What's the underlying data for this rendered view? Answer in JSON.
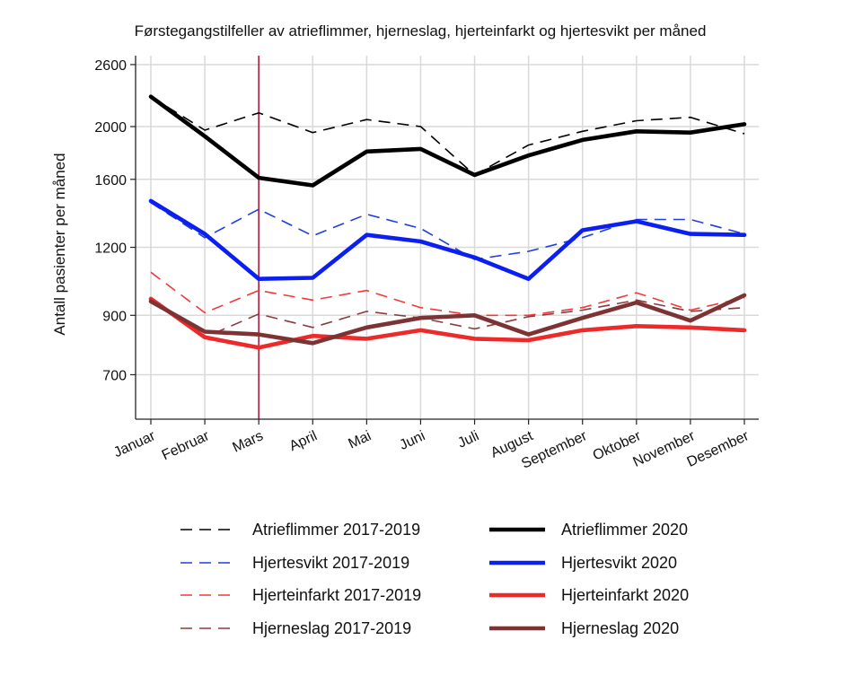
{
  "chart_data": {
    "type": "line",
    "title": "Førstegangstilfeller av atrieflimmer, hjerneslag, hjerteinfarkt og hjertesvikt per måned",
    "xlabel": "",
    "ylabel": "Antall pasienter per måned",
    "categories": [
      "Januar",
      "Februar",
      "Mars",
      "April",
      "Mai",
      "Juni",
      "Juli",
      "August",
      "September",
      "Oktober",
      "November",
      "Desember"
    ],
    "y_scale": "log",
    "ylim": [
      580,
      2700
    ],
    "yticks": [
      700,
      900,
      1200,
      1600,
      2000,
      2600
    ],
    "marker_line": {
      "category": "Mars",
      "color": "#b02040"
    },
    "grid": true,
    "legend_position": "bottom",
    "series": [
      {
        "name": "Atrieflimmer 2017-2019",
        "color": "#000000",
        "style": "dashed",
        "values": [
          2270,
          1970,
          2120,
          1950,
          2060,
          2000,
          1630,
          1850,
          1960,
          2050,
          2080,
          1940
        ]
      },
      {
        "name": "Atrieflimmer 2020",
        "color": "#000000",
        "style": "solid",
        "values": [
          2270,
          1920,
          1610,
          1560,
          1800,
          1820,
          1630,
          1770,
          1890,
          1960,
          1950,
          2020
        ]
      },
      {
        "name": "Hjertesvikt 2017-2019",
        "color": "#1f3fe0",
        "style": "dashed",
        "values": [
          1450,
          1250,
          1410,
          1260,
          1380,
          1300,
          1140,
          1180,
          1250,
          1350,
          1350,
          1270
        ]
      },
      {
        "name": "Hjertesvikt 2020",
        "color": "#0a1ff0",
        "style": "solid",
        "values": [
          1460,
          1270,
          1050,
          1055,
          1265,
          1230,
          1150,
          1050,
          1290,
          1340,
          1270,
          1265
        ]
      },
      {
        "name": "Hjerteinfarkt 2017-2019",
        "color": "#f03a3a",
        "style": "dashed",
        "values": [
          1080,
          910,
          1000,
          960,
          1000,
          930,
          900,
          900,
          930,
          990,
          920,
          970
        ]
      },
      {
        "name": "Hjerteinfarkt 2020",
        "color": "#ec2a2a",
        "style": "solid",
        "values": [
          965,
          820,
          785,
          825,
          815,
          845,
          815,
          810,
          845,
          860,
          855,
          845
        ]
      },
      {
        "name": "Hjerneslag 2017-2019",
        "color": "#8a3b3b",
        "style": "dashed",
        "values": [
          960,
          820,
          905,
          855,
          915,
          890,
          850,
          895,
          920,
          960,
          915,
          930
        ]
      },
      {
        "name": "Hjerneslag 2020",
        "color": "#7d3333",
        "style": "solid",
        "values": [
          955,
          840,
          830,
          800,
          855,
          890,
          900,
          830,
          890,
          950,
          880,
          980
        ]
      }
    ]
  }
}
